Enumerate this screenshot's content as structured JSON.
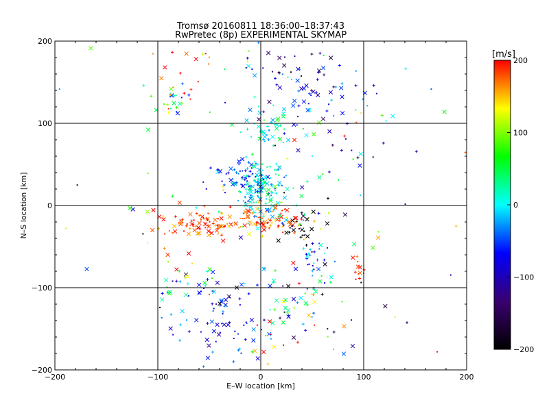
{
  "chart_data": {
    "type": "scatter",
    "title_line1": "Tromsø 20160811 18:36:00–18:37:43",
    "title_line2": "RwPretec (8p) EXPERIMENTAL SKYMAP",
    "xlabel": "E–W location [km]",
    "ylabel": "N–S location [km]",
    "xlim": [
      -200,
      200
    ],
    "ylim": [
      -200,
      200
    ],
    "x_ticks": [
      "−200",
      "−100",
      "0",
      "100",
      "200"
    ],
    "y_ticks": [
      "−200",
      "−100",
      "0",
      "100",
      "200"
    ],
    "grid": true,
    "colorbar": {
      "label": "[m/s]",
      "range": [
        -200,
        200
      ],
      "ticks": [
        "200",
        "100",
        "0",
        "−100",
        "−200"
      ],
      "colormap": [
        "#000000",
        "#3a0070",
        "#0000ff",
        "#00ffff",
        "#00ff00",
        "#ffff00",
        "#ff0000"
      ]
    },
    "markers": [
      "x",
      "+",
      "."
    ],
    "clusters": [
      {
        "x": 0,
        "y": 20,
        "sx": 12,
        "sy": 18,
        "n": 160,
        "v": -5,
        "vs": 30
      },
      {
        "x": -25,
        "y": 35,
        "sx": 14,
        "sy": 8,
        "n": 40,
        "v": -70,
        "vs": 20
      },
      {
        "x": 5,
        "y": 90,
        "sx": 12,
        "sy": 12,
        "n": 40,
        "v": 10,
        "vs": 25
      },
      {
        "x": 0,
        "y": -18,
        "sx": 25,
        "sy": 8,
        "n": 90,
        "v": 175,
        "vs": 25
      },
      {
        "x": -55,
        "y": -22,
        "sx": 18,
        "sy": 10,
        "n": 60,
        "v": 185,
        "vs": 20
      },
      {
        "x": -90,
        "y": -25,
        "sx": 15,
        "sy": 12,
        "n": 18,
        "v": 180,
        "vs": 30
      },
      {
        "x": 40,
        "y": -25,
        "sx": 12,
        "sy": 12,
        "n": 25,
        "v": -190,
        "vs": 25
      },
      {
        "x": -40,
        "y": -140,
        "sx": 25,
        "sy": 25,
        "n": 70,
        "v": -70,
        "vs": 30
      },
      {
        "x": 40,
        "y": -120,
        "sx": 30,
        "sy": 30,
        "n": 70,
        "v": 20,
        "vs": 110
      },
      {
        "x": 50,
        "y": 130,
        "sx": 30,
        "sy": 20,
        "n": 60,
        "v": -70,
        "vs": 40
      },
      {
        "x": -85,
        "y": 125,
        "sx": 10,
        "sy": 10,
        "n": 25,
        "v": 70,
        "vs": 110
      },
      {
        "x": 50,
        "y": -65,
        "sx": 8,
        "sy": 10,
        "n": 20,
        "v": -55,
        "vs": 40
      },
      {
        "x": 95,
        "y": -80,
        "sx": 4,
        "sy": 8,
        "n": 12,
        "v": 195,
        "vs": 10
      },
      {
        "x": -75,
        "y": -95,
        "sx": 20,
        "sy": 15,
        "n": 25,
        "v": 30,
        "vs": 100
      },
      {
        "x": 60,
        "y": 50,
        "sx": 30,
        "sy": 40,
        "n": 30,
        "v": 0,
        "vs": 80
      },
      {
        "x": -70,
        "y": 170,
        "sx": 20,
        "sy": 20,
        "n": 15,
        "v": 180,
        "vs": 30
      },
      {
        "x": 25,
        "y": 170,
        "sx": 25,
        "sy": 15,
        "n": 25,
        "v": -100,
        "vs": 50
      },
      {
        "x": 0,
        "y": 0,
        "sx": 110,
        "sy": 120,
        "n": 110,
        "v": 0,
        "vs": 120
      }
    ]
  }
}
